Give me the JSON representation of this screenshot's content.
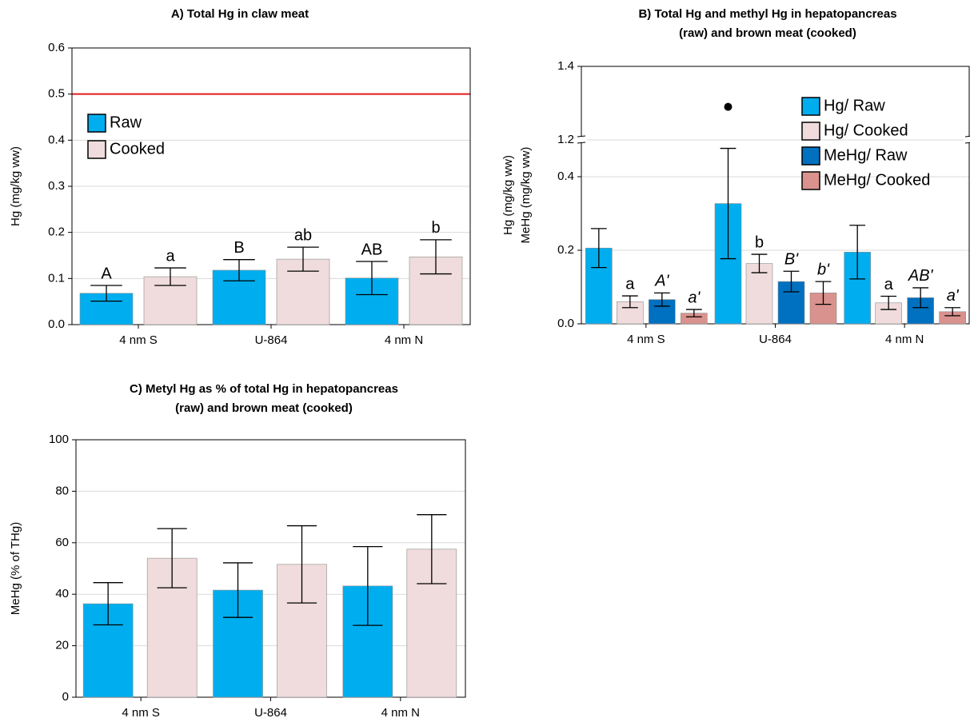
{
  "chart_data": [
    {
      "type": "bar",
      "title": [
        "A) Total Hg in claw meat"
      ],
      "ylabel": [
        "Hg (mg/kg ww)"
      ],
      "categories": [
        "4 nm S",
        "U-864",
        "4 nm N"
      ],
      "series": [
        {
          "name": "Raw",
          "color": "#00aeef",
          "values": [
            0.068,
            0.118,
            0.101
          ],
          "errors": [
            0.017,
            0.023,
            0.036
          ],
          "labels": [
            "A",
            "B",
            "AB"
          ]
        },
        {
          "name": "Cooked",
          "color": "#f0dcdc",
          "values": [
            0.104,
            0.142,
            0.147
          ],
          "errors": [
            0.019,
            0.026,
            0.037
          ],
          "labels": [
            "a",
            "ab",
            "b"
          ]
        }
      ],
      "ylim": [
        0,
        0.6
      ],
      "yticks": [
        {
          "value": 0,
          "label": "0.0"
        },
        0.1,
        0.2,
        0.3,
        0.4,
        0.5,
        0.6
      ],
      "reference_line": 0.5,
      "reference_color": "#e31a1c",
      "grid": true,
      "legend": true
    },
    {
      "type": "bar",
      "title": [
        "B) Total Hg and methyl Hg in hepatopancreas",
        "(raw) and brown meat (cooked)"
      ],
      "ylabel": [
        "Hg (mg/kg ww)",
        "MeHg (mg/kg ww)"
      ],
      "categories": [
        "4 nm S",
        "U-864",
        "4 nm N"
      ],
      "series": [
        {
          "name": "Hg/ Raw",
          "color": "#00aeef",
          "values": [
            0.206,
            0.327,
            0.195
          ],
          "errors": [
            0.053,
            0.15,
            0.073
          ],
          "outliers": [
            null,
            1.29,
            null
          ]
        },
        {
          "name": "Hg/ Cooked",
          "color": "#f0dcdc",
          "values": [
            0.06,
            0.164,
            0.057
          ],
          "errors": [
            0.016,
            0.025,
            0.018
          ],
          "labels": [
            "a",
            "b",
            "a"
          ]
        },
        {
          "name": "MeHg/ Raw",
          "color": "#0070c0",
          "values": [
            0.066,
            0.115,
            0.071
          ],
          "errors": [
            0.018,
            0.028,
            0.027
          ],
          "labels": [
            "A'",
            "B'",
            "AB'"
          ],
          "label_italic": true
        },
        {
          "name": "MeHg/ Cooked",
          "color": "#d9928e",
          "values": [
            0.029,
            0.084,
            0.033
          ],
          "errors": [
            0.01,
            0.031,
            0.011
          ],
          "labels": [
            "a'",
            "b'",
            "a'"
          ],
          "label_italic": true
        }
      ],
      "ylim": [
        0,
        1.4
      ],
      "ybreak": [
        0.5,
        1.2
      ],
      "yticks": [
        {
          "value": 0,
          "label": "0.0"
        },
        0.2,
        0.4,
        1.2,
        1.4
      ],
      "grid": true,
      "legend": true
    },
    {
      "type": "bar",
      "title": [
        "C) Metyl Hg as % of total Hg in hepatopancreas",
        "(raw) and brown meat (cooked)"
      ],
      "ylabel": [
        "MeHg (% of THg)"
      ],
      "categories": [
        "4 nm S",
        "U-864",
        "4 nm N"
      ],
      "series": [
        {
          "color": "#00aeef",
          "values": [
            36.3,
            41.6,
            43.2
          ],
          "errors": [
            8.2,
            10.6,
            15.3
          ]
        },
        {
          "color": "#f0dcdc",
          "values": [
            54,
            51.6,
            57.5
          ],
          "errors": [
            11.5,
            15,
            13.4
          ]
        }
      ],
      "ylim": [
        0,
        100
      ],
      "yticks": [
        0,
        20,
        40,
        60,
        80,
        100
      ],
      "grid": true,
      "legend": false
    }
  ]
}
